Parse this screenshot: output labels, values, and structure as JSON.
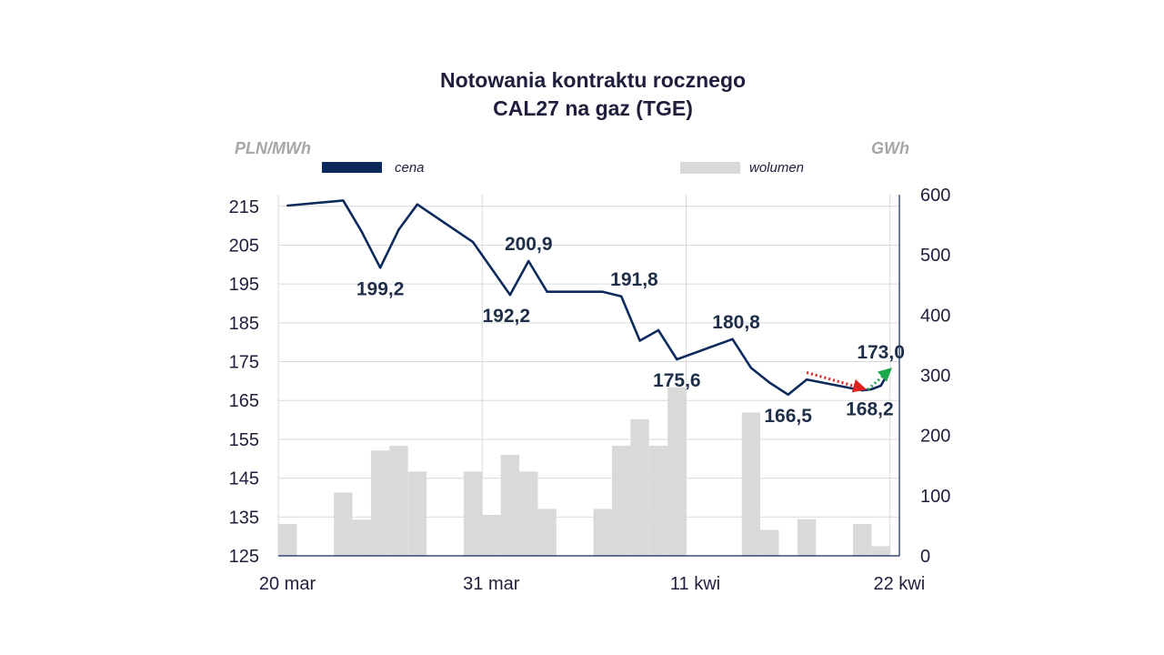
{
  "chart_data": {
    "type": "line+bar",
    "title": [
      "Notowania kontraktu rocznego",
      "CAL27 na gaz (TGE)"
    ],
    "y_left_label": "PLN/MWh",
    "y_right_label": "GWh",
    "legend": [
      {
        "name": "cena",
        "type": "line",
        "color": "#0d2a5c"
      },
      {
        "name": "wolumen",
        "type": "bar",
        "color": "#d9d9d9"
      }
    ],
    "y_left": {
      "min": 125,
      "max": 218,
      "ticks": [
        125,
        135,
        145,
        155,
        165,
        175,
        185,
        195,
        205,
        215
      ]
    },
    "y_right": {
      "min": 0,
      "max": 600,
      "ticks": [
        0,
        100,
        200,
        300,
        400,
        500,
        600
      ]
    },
    "x_tick_labels": [
      "20 mar",
      "31 mar",
      "11 kwi",
      "22 kwi"
    ],
    "x_tick_positions": [
      0,
      11,
      22,
      33
    ],
    "x_range": [
      0,
      33.5
    ],
    "volume": [
      {
        "x": 0.5,
        "value": 53
      },
      {
        "x": 3.5,
        "value": 105
      },
      {
        "x": 4.5,
        "value": 60
      },
      {
        "x": 5.5,
        "value": 175
      },
      {
        "x": 6.5,
        "value": 183
      },
      {
        "x": 7.5,
        "value": 140
      },
      {
        "x": 10.5,
        "value": 140
      },
      {
        "x": 11.5,
        "value": 68
      },
      {
        "x": 12.5,
        "value": 168
      },
      {
        "x": 13.5,
        "value": 140
      },
      {
        "x": 14.5,
        "value": 78
      },
      {
        "x": 17.5,
        "value": 78
      },
      {
        "x": 18.5,
        "value": 183
      },
      {
        "x": 19.5,
        "value": 227
      },
      {
        "x": 20.5,
        "value": 183
      },
      {
        "x": 21.5,
        "value": 280
      },
      {
        "x": 25.5,
        "value": 238
      },
      {
        "x": 26.5,
        "value": 43
      },
      {
        "x": 28.5,
        "value": 61
      },
      {
        "x": 31.5,
        "value": 53
      },
      {
        "x": 32.5,
        "value": 16
      }
    ],
    "price": [
      {
        "x": 0.5,
        "y": 215.2
      },
      {
        "x": 3.5,
        "y": 216.5
      },
      {
        "x": 4.5,
        "y": 208.5
      },
      {
        "x": 5.5,
        "y": 199.2
      },
      {
        "x": 6.5,
        "y": 209.0
      },
      {
        "x": 7.5,
        "y": 215.5
      },
      {
        "x": 10.5,
        "y": 205.8
      },
      {
        "x": 11.5,
        "y": 199.0
      },
      {
        "x": 12.5,
        "y": 192.2
      },
      {
        "x": 13.5,
        "y": 200.9
      },
      {
        "x": 14.5,
        "y": 193.0
      },
      {
        "x": 17.5,
        "y": 193.0
      },
      {
        "x": 18.5,
        "y": 191.8
      },
      {
        "x": 19.5,
        "y": 180.4
      },
      {
        "x": 20.5,
        "y": 183.1
      },
      {
        "x": 21.5,
        "y": 175.6
      },
      {
        "x": 24.5,
        "y": 180.8
      },
      {
        "x": 25.5,
        "y": 173.4
      },
      {
        "x": 26.5,
        "y": 169.6
      },
      {
        "x": 27.5,
        "y": 166.5
      },
      {
        "x": 28.5,
        "y": 170.4
      },
      {
        "x": 31.5,
        "y": 167.6
      },
      {
        "x": 32.0,
        "y": 167.9
      },
      {
        "x": 32.5,
        "y": 168.8
      },
      {
        "x": 33.0,
        "y": 173.0
      }
    ],
    "data_labels": [
      {
        "text": "199,2",
        "x": 5.5,
        "y": 199.2,
        "pos": "below"
      },
      {
        "text": "192,2",
        "x": 12.3,
        "y": 192.2,
        "pos": "below"
      },
      {
        "text": "200,9",
        "x": 13.5,
        "y": 200.9,
        "pos": "above"
      },
      {
        "text": "191,8",
        "x": 19.2,
        "y": 191.8,
        "pos": "above"
      },
      {
        "text": "175,6",
        "x": 21.5,
        "y": 175.6,
        "pos": "below"
      },
      {
        "text": "180,8",
        "x": 24.7,
        "y": 180.8,
        "pos": "above"
      },
      {
        "text": "166,5",
        "x": 27.5,
        "y": 166.5,
        "pos": "below"
      },
      {
        "text": "168,2",
        "x": 31.9,
        "y": 168.2,
        "pos": "below"
      },
      {
        "text": "173,0",
        "x": 32.5,
        "y": 173.0,
        "pos": "above"
      }
    ],
    "arrows": [
      {
        "from": {
          "x": 28.5,
          "y": 172.2
        },
        "to": {
          "x": 31.6,
          "y": 168.0
        },
        "color": "#e02020",
        "style": "dotted"
      },
      {
        "from": {
          "x": 31.8,
          "y": 167.8
        },
        "to": {
          "x": 33.0,
          "y": 173.0
        },
        "color": "#1aa84a",
        "style": "dotted"
      }
    ]
  }
}
